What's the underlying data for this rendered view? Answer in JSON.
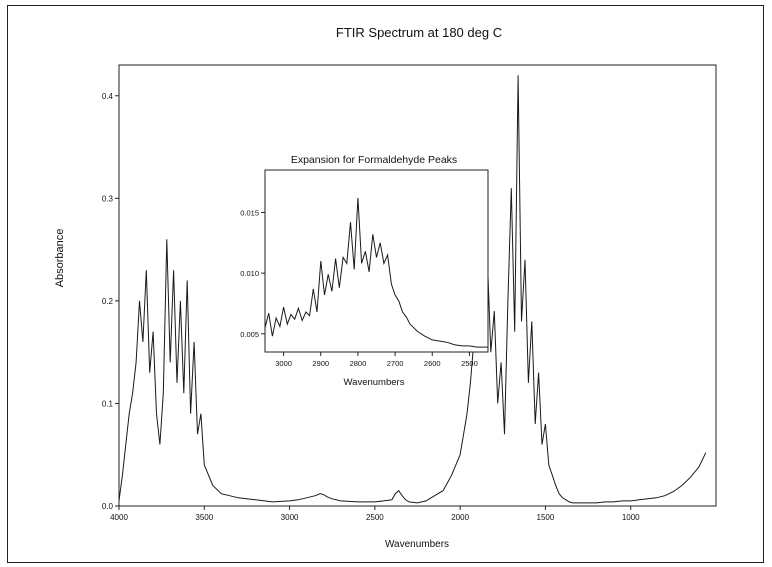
{
  "chart_data": [
    {
      "type": "line",
      "title": "FTIR Spectrum at 180 deg C",
      "xlabel": "Wavenumbers",
      "ylabel": "Absorbance",
      "xlim": [
        4000,
        500
      ],
      "ylim": [
        0,
        0.43
      ],
      "x_ticks": [
        4000,
        3500,
        3000,
        2500,
        2000,
        1500,
        1000
      ],
      "x_tick_labels": [
        "4000",
        "3500",
        "3000",
        "2500",
        "2000",
        "1500",
        "1000"
      ],
      "y_ticks": [
        0.0,
        0.1,
        0.2,
        0.3,
        0.4
      ],
      "y_tick_labels": [
        "0.0",
        "0.1",
        "0.2",
        "0.3",
        "0.4"
      ],
      "grid": false,
      "series": [
        {
          "x": [
            4000,
            3980,
            3960,
            3940,
            3920,
            3900,
            3880,
            3860,
            3840,
            3820,
            3800,
            3780,
            3760,
            3740,
            3720,
            3700,
            3680,
            3660,
            3640,
            3620,
            3600,
            3580,
            3560,
            3540,
            3520,
            3500,
            3450,
            3400,
            3300,
            3200,
            3100,
            3000,
            2950,
            2900,
            2850,
            2820,
            2800,
            2780,
            2750,
            2700,
            2600,
            2500,
            2450,
            2400,
            2380,
            2360,
            2340,
            2320,
            2300,
            2250,
            2200,
            2150,
            2100,
            2050,
            2000,
            1980,
            1960,
            1940,
            1920,
            1900,
            1880,
            1860,
            1840,
            1820,
            1800,
            1780,
            1760,
            1740,
            1720,
            1700,
            1680,
            1660,
            1640,
            1620,
            1600,
            1580,
            1560,
            1540,
            1520,
            1500,
            1480,
            1460,
            1440,
            1420,
            1400,
            1380,
            1360,
            1340,
            1320,
            1300,
            1250,
            1200,
            1150,
            1100,
            1050,
            1000,
            950,
            900,
            850,
            800,
            750,
            700,
            650,
            600,
            560
          ],
          "y": [
            0.005,
            0.03,
            0.06,
            0.09,
            0.11,
            0.14,
            0.2,
            0.16,
            0.23,
            0.13,
            0.17,
            0.09,
            0.06,
            0.11,
            0.26,
            0.14,
            0.23,
            0.12,
            0.2,
            0.11,
            0.22,
            0.09,
            0.16,
            0.07,
            0.09,
            0.04,
            0.02,
            0.012,
            0.008,
            0.006,
            0.004,
            0.005,
            0.006,
            0.008,
            0.01,
            0.012,
            0.011,
            0.009,
            0.007,
            0.005,
            0.004,
            0.004,
            0.005,
            0.006,
            0.012,
            0.015,
            0.01,
            0.006,
            0.004,
            0.003,
            0.005,
            0.01,
            0.015,
            0.03,
            0.05,
            0.07,
            0.09,
            0.12,
            0.16,
            0.2,
            0.25,
            0.22,
            0.24,
            0.15,
            0.19,
            0.1,
            0.14,
            0.07,
            0.2,
            0.31,
            0.17,
            0.42,
            0.18,
            0.24,
            0.12,
            0.18,
            0.08,
            0.13,
            0.06,
            0.08,
            0.04,
            0.03,
            0.02,
            0.012,
            0.008,
            0.006,
            0.004,
            0.003,
            0.003,
            0.003,
            0.003,
            0.003,
            0.004,
            0.004,
            0.005,
            0.005,
            0.006,
            0.007,
            0.008,
            0.01,
            0.014,
            0.02,
            0.028,
            0.038,
            0.052
          ]
        }
      ]
    },
    {
      "type": "line",
      "title": "Expansion for Formaldehyde Peaks",
      "xlabel": "Wavenumbers",
      "xlim": [
        3050,
        2450
      ],
      "ylim": [
        0.0035,
        0.0185
      ],
      "x_ticks": [
        3000,
        2900,
        2800,
        2700,
        2600,
        2500
      ],
      "x_tick_labels": [
        "3000",
        "2900",
        "2800",
        "2700",
        "2600",
        "2500"
      ],
      "y_ticks": [
        0.005,
        0.01,
        0.015
      ],
      "y_tick_labels": [
        "0.005",
        "0.010",
        "0.015"
      ],
      "grid": false,
      "series": [
        {
          "x": [
            3050,
            3040,
            3030,
            3020,
            3010,
            3000,
            2990,
            2980,
            2970,
            2960,
            2950,
            2940,
            2930,
            2920,
            2910,
            2900,
            2890,
            2880,
            2870,
            2860,
            2850,
            2840,
            2830,
            2820,
            2810,
            2800,
            2790,
            2780,
            2770,
            2760,
            2750,
            2740,
            2730,
            2720,
            2710,
            2700,
            2690,
            2680,
            2670,
            2660,
            2650,
            2640,
            2620,
            2600,
            2580,
            2560,
            2540,
            2520,
            2500,
            2480,
            2460,
            2450
          ],
          "y": [
            0.0055,
            0.0067,
            0.0048,
            0.0063,
            0.0056,
            0.0072,
            0.0058,
            0.0066,
            0.0062,
            0.0071,
            0.0061,
            0.0068,
            0.0065,
            0.0087,
            0.0068,
            0.011,
            0.0082,
            0.0099,
            0.0085,
            0.0112,
            0.0088,
            0.0113,
            0.0108,
            0.0142,
            0.0103,
            0.0162,
            0.0108,
            0.0118,
            0.0101,
            0.0132,
            0.0113,
            0.0125,
            0.0108,
            0.0115,
            0.0091,
            0.0082,
            0.0077,
            0.0068,
            0.0064,
            0.0058,
            0.0055,
            0.0052,
            0.0048,
            0.0045,
            0.0044,
            0.0043,
            0.0041,
            0.004,
            0.004,
            0.0039,
            0.0039,
            0.0039
          ]
        }
      ]
    }
  ]
}
